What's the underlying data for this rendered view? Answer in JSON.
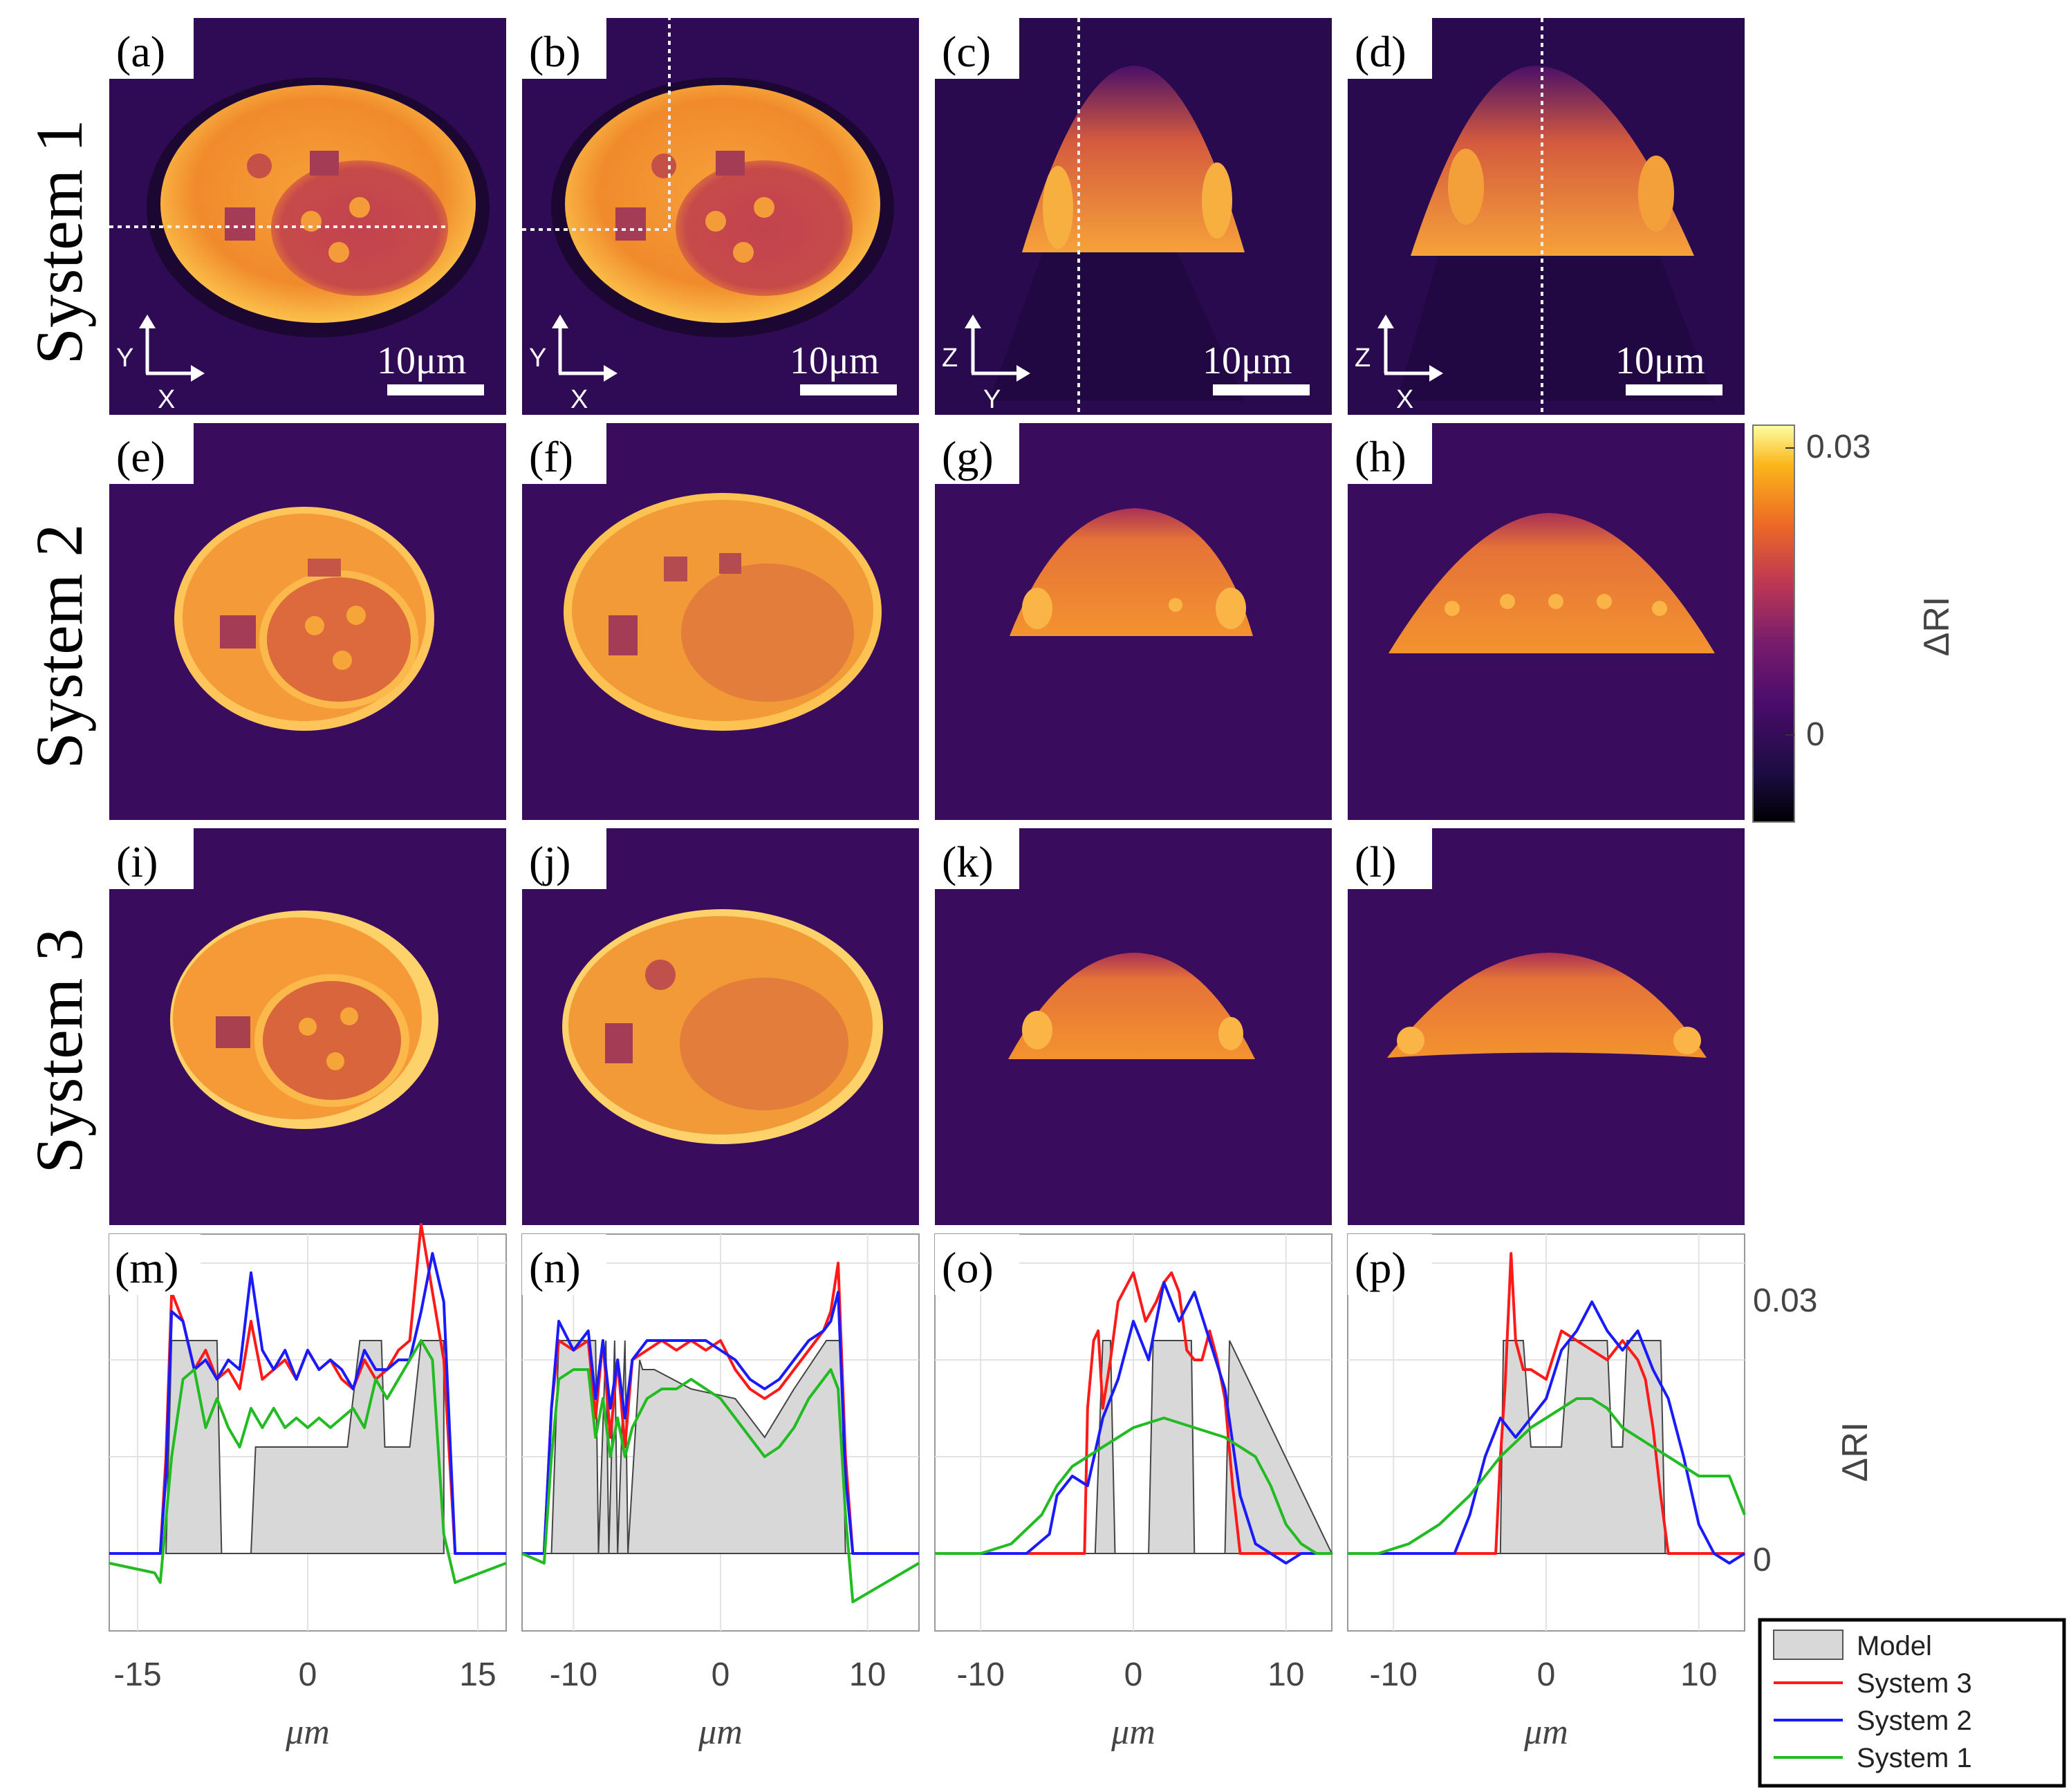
{
  "row_labels": [
    "System 1",
    "System 2",
    "System 3"
  ],
  "panel_labels": [
    "(a)",
    "(b)",
    "(c)",
    "(d)",
    "(e)",
    "(f)",
    "(g)",
    "(h)",
    "(i)",
    "(j)",
    "(k)",
    "(l)",
    "(m)",
    "(n)",
    "(o)",
    "(p)"
  ],
  "scalebar_label": "10μm",
  "axes_icons": [
    {
      "vertical": "Y",
      "horizontal": "X"
    },
    {
      "vertical": "Y",
      "horizontal": "X"
    },
    {
      "vertical": "Z",
      "horizontal": "Y"
    },
    {
      "vertical": "Z",
      "horizontal": "X"
    }
  ],
  "colorbar": {
    "label": "ΔRI",
    "tick_labels": [
      "0.03",
      "0"
    ],
    "range": [
      -0.005,
      0.032
    ],
    "colors": [
      "#000004",
      "#320a5e",
      "#781c6d",
      "#bc3754",
      "#ed6925",
      "#fbb61a",
      "#fcffa4"
    ]
  },
  "colors": {
    "model_fill": "#d8d8d8",
    "model_edge": "#444444",
    "system3": "#ff1a1a",
    "system2": "#1a1aff",
    "system1": "#22bb22",
    "grid": "#e3e3e3"
  },
  "chart_data": [
    {
      "type": "line",
      "title": "(m)",
      "xlabel": "μm",
      "ylabel": "ΔRI",
      "xlim": [
        -17.5,
        17.5
      ],
      "ylim": [
        -0.008,
        0.033
      ],
      "xticks": [
        -15,
        0,
        15
      ],
      "xtick_labels": [
        "-15",
        "0",
        "15"
      ],
      "series": [
        {
          "name": "Model",
          "x": [
            -12.5,
            -12,
            -8,
            -7.6,
            -5,
            -4.6,
            -3.5,
            -3.5,
            3.5,
            3.5,
            4.6,
            6.5,
            6.8,
            9,
            10,
            12
          ],
          "y": [
            0,
            0.022,
            0.022,
            0,
            0,
            0.011,
            0.011,
            0.011,
            0.011,
            0.011,
            0.022,
            0.022,
            0.011,
            0.011,
            0.022,
            0.022
          ]
        },
        {
          "name": "System 3",
          "x": [
            -17.5,
            -13,
            -12.5,
            -12,
            -11,
            -10,
            -9,
            -8,
            -7,
            -6,
            -5,
            -4,
            -3,
            -2,
            -1,
            0,
            1,
            2,
            3,
            4,
            5,
            6,
            7,
            8,
            9,
            10,
            11,
            12,
            13,
            17.5
          ],
          "y": [
            0,
            0,
            0.01,
            0.027,
            0.024,
            0.019,
            0.021,
            0.018,
            0.019,
            0.017,
            0.024,
            0.018,
            0.019,
            0.02,
            0.018,
            0.021,
            0.019,
            0.02,
            0.018,
            0.017,
            0.02,
            0.018,
            0.019,
            0.021,
            0.022,
            0.034,
            0.027,
            0.02,
            0,
            0
          ]
        },
        {
          "name": "System 2",
          "x": [
            -17.5,
            -13,
            -12.5,
            -12,
            -11,
            -10,
            -9,
            -8,
            -7,
            -6,
            -5,
            -4,
            -3,
            -2,
            -1,
            0,
            1,
            2,
            3,
            4,
            5,
            6,
            7,
            8,
            9,
            10,
            11,
            12,
            13,
            17.5
          ],
          "y": [
            0,
            0,
            0.008,
            0.025,
            0.024,
            0.019,
            0.02,
            0.018,
            0.02,
            0.019,
            0.029,
            0.021,
            0.019,
            0.021,
            0.018,
            0.021,
            0.019,
            0.02,
            0.019,
            0.017,
            0.021,
            0.019,
            0.019,
            0.02,
            0.02,
            0.025,
            0.031,
            0.026,
            0,
            0
          ]
        },
        {
          "name": "System 1",
          "x": [
            -17.5,
            -13.5,
            -13,
            -12,
            -11,
            -10,
            -9,
            -8,
            -7,
            -6,
            -5,
            -4,
            -3,
            -2,
            -1,
            0,
            1,
            2,
            3,
            4,
            5,
            6,
            7,
            8,
            9,
            10,
            11,
            12,
            13,
            17.5
          ],
          "y": [
            -0.001,
            -0.002,
            -0.003,
            0.01,
            0.018,
            0.019,
            0.013,
            0.016,
            0.013,
            0.011,
            0.015,
            0.013,
            0.015,
            0.013,
            0.014,
            0.013,
            0.014,
            0.013,
            0.014,
            0.015,
            0.013,
            0.018,
            0.016,
            0.018,
            0.02,
            0.022,
            0.02,
            0.002,
            -0.003,
            -0.001
          ]
        }
      ]
    },
    {
      "type": "line",
      "title": "(n)",
      "xlabel": "μm",
      "ylabel": "ΔRI",
      "xlim": [
        -13.5,
        13.5
      ],
      "ylim": [
        -0.008,
        0.033
      ],
      "xticks": [
        -10,
        0,
        10
      ],
      "xtick_labels": [
        "-10",
        "0",
        "10"
      ],
      "series": [
        {
          "name": "Model",
          "x": [
            -13,
            -11.5,
            -11,
            -9,
            -8.5,
            -8.3,
            -7.8,
            -7.6,
            -7.2,
            -7,
            -6.5,
            -6.3,
            -5.5,
            -5.3,
            -4.5,
            -2,
            1,
            3,
            5,
            7.2,
            7.8,
            8.2,
            8.5,
            13.5
          ],
          "y": [
            0,
            0,
            0.022,
            0.022,
            0.022,
            0,
            0.022,
            0,
            0.022,
            0,
            0.022,
            0,
            0.02,
            0.019,
            0.019,
            0.017,
            0.016,
            0.012,
            0.017,
            0.022,
            0.022,
            0.022,
            0,
            0
          ]
        },
        {
          "name": "System 3",
          "x": [
            -13.5,
            -12,
            -11.5,
            -11,
            -10,
            -9,
            -8.5,
            -8,
            -7.5,
            -7,
            -6.5,
            -6,
            -5,
            -4,
            -3,
            -2,
            -1,
            0,
            1,
            2,
            3,
            4,
            5,
            6,
            7,
            7.5,
            8,
            8.5,
            9,
            13.5
          ],
          "y": [
            0,
            0,
            0.015,
            0.022,
            0.021,
            0.022,
            0.014,
            0.022,
            0.012,
            0.02,
            0.011,
            0.02,
            0.021,
            0.022,
            0.021,
            0.022,
            0.021,
            0.022,
            0.019,
            0.017,
            0.016,
            0.017,
            0.019,
            0.021,
            0.023,
            0.025,
            0.03,
            0.01,
            0,
            0
          ]
        },
        {
          "name": "System 2",
          "x": [
            -13.5,
            -12,
            -11.5,
            -11,
            -10,
            -9,
            -8.5,
            -8,
            -7.5,
            -7,
            -6.5,
            -6,
            -5,
            -4,
            -3,
            -2,
            -1,
            0,
            1,
            2,
            3,
            4,
            5,
            6,
            7,
            7.5,
            8,
            8.5,
            9,
            13.5
          ],
          "y": [
            0,
            0,
            0.015,
            0.024,
            0.021,
            0.023,
            0.016,
            0.022,
            0.015,
            0.02,
            0.014,
            0.02,
            0.022,
            0.022,
            0.022,
            0.022,
            0.022,
            0.021,
            0.02,
            0.018,
            0.017,
            0.018,
            0.02,
            0.022,
            0.023,
            0.024,
            0.027,
            0.008,
            0,
            0
          ]
        },
        {
          "name": "System 1",
          "x": [
            -13.5,
            -12,
            -11.5,
            -11,
            -10,
            -9,
            -8.5,
            -8,
            -7.5,
            -7,
            -6.5,
            -6,
            -5,
            -4,
            -3,
            -2,
            -1,
            0,
            1,
            2,
            3,
            4,
            5,
            6,
            7,
            7.5,
            8,
            8.5,
            9,
            13.5
          ],
          "y": [
            0,
            -0.001,
            0.01,
            0.018,
            0.019,
            0.019,
            0.012,
            0.016,
            0.01,
            0.014,
            0.01,
            0.013,
            0.016,
            0.017,
            0.017,
            0.018,
            0.017,
            0.016,
            0.014,
            0.012,
            0.01,
            0.011,
            0.013,
            0.016,
            0.018,
            0.019,
            0.017,
            0.004,
            -0.005,
            -0.001
          ]
        }
      ]
    },
    {
      "type": "line",
      "title": "(o)",
      "xlabel": "μm",
      "ylabel": "ΔRI",
      "xlim": [
        -13,
        13
      ],
      "ylim": [
        -0.008,
        0.033
      ],
      "xticks": [
        -10,
        0,
        10
      ],
      "xtick_labels": [
        "-10",
        "0",
        "10"
      ],
      "series": [
        {
          "name": "Model",
          "x": [
            -13,
            -2.5,
            -2,
            -1.5,
            -1.2,
            1,
            1.3,
            3.8,
            4,
            6,
            6.3,
            13
          ],
          "y": [
            0,
            0,
            0.022,
            0.022,
            0,
            0,
            0.022,
            0.022,
            0,
            0,
            0.022,
            0
          ]
        },
        {
          "name": "System 3",
          "x": [
            -13,
            -3.2,
            -3,
            -2.6,
            -2.3,
            -2,
            -1.5,
            -1,
            0,
            0.8,
            1.5,
            2,
            2.5,
            3,
            3.5,
            4,
            4.5,
            5,
            5.5,
            6,
            6.5,
            7,
            13
          ],
          "y": [
            0,
            0,
            0.015,
            0.022,
            0.023,
            0.015,
            0.02,
            0.026,
            0.029,
            0.024,
            0.026,
            0.028,
            0.029,
            0.027,
            0.021,
            0.02,
            0.02,
            0.023,
            0.02,
            0.016,
            0.007,
            0,
            0
          ]
        },
        {
          "name": "System 2",
          "x": [
            -13,
            -7,
            -5.5,
            -5,
            -4,
            -3,
            -2,
            -1,
            0,
            1,
            2,
            3,
            4,
            5,
            6,
            7,
            8,
            9,
            10,
            11,
            12,
            13
          ],
          "y": [
            0,
            0,
            0.002,
            0.006,
            0.008,
            0.007,
            0.014,
            0.018,
            0.024,
            0.02,
            0.028,
            0.024,
            0.027,
            0.022,
            0.017,
            0.006,
            0.001,
            0,
            -0.001,
            0,
            0,
            0
          ]
        },
        {
          "name": "System 1",
          "x": [
            -13,
            -10,
            -8,
            -6,
            -5,
            -4,
            -2,
            0,
            2,
            4,
            6,
            8,
            9,
            10,
            11,
            12,
            13
          ],
          "y": [
            0,
            0,
            0.001,
            0.004,
            0.007,
            0.009,
            0.011,
            0.013,
            0.014,
            0.013,
            0.012,
            0.01,
            0.007,
            0.003,
            0.001,
            0,
            0
          ]
        }
      ]
    },
    {
      "type": "line",
      "title": "(p)",
      "xlabel": "μm",
      "ylabel": "ΔRI",
      "xlim": [
        -13,
        13
      ],
      "ylim": [
        -0.008,
        0.033
      ],
      "xticks": [
        -10,
        0,
        10
      ],
      "xtick_labels": [
        "-10",
        "0",
        "10"
      ],
      "series": [
        {
          "name": "Model",
          "x": [
            -13,
            -3,
            -2.8,
            -1.5,
            -1,
            1,
            1.5,
            4,
            4.3,
            5,
            5.3,
            7.5,
            7.8,
            13
          ],
          "y": [
            0,
            0,
            0.022,
            0.022,
            0.011,
            0.011,
            0.022,
            0.022,
            0.011,
            0.011,
            0.022,
            0.022,
            0,
            0
          ]
        },
        {
          "name": "System 3",
          "x": [
            -13,
            -3.3,
            -3,
            -2.7,
            -2.3,
            -2,
            -1.5,
            -1,
            0,
            1,
            2,
            3,
            4,
            5,
            6,
            6.5,
            7,
            7.5,
            8,
            8.5,
            13
          ],
          "y": [
            0,
            0,
            0.01,
            0.017,
            0.031,
            0.022,
            0.019,
            0.019,
            0.018,
            0.023,
            0.022,
            0.021,
            0.02,
            0.022,
            0.02,
            0.018,
            0.013,
            0.006,
            0,
            0,
            0
          ]
        },
        {
          "name": "System 2",
          "x": [
            -13,
            -6,
            -5,
            -4,
            -3,
            -2,
            -1,
            0,
            1,
            2,
            3,
            4,
            5,
            6,
            7,
            8,
            9,
            10,
            11,
            12,
            13
          ],
          "y": [
            0,
            0,
            0.004,
            0.01,
            0.014,
            0.012,
            0.014,
            0.016,
            0.021,
            0.023,
            0.026,
            0.023,
            0.021,
            0.023,
            0.019,
            0.016,
            0.01,
            0.003,
            0,
            -0.001,
            0
          ]
        },
        {
          "name": "System 1",
          "x": [
            -13,
            -11,
            -9,
            -7,
            -5,
            -3,
            -1,
            1,
            2,
            3,
            4,
            5,
            6,
            7,
            8,
            9,
            10,
            11,
            12,
            13
          ],
          "y": [
            0,
            0,
            0.001,
            0.003,
            0.006,
            0.01,
            0.013,
            0.015,
            0.016,
            0.016,
            0.015,
            0.013,
            0.012,
            0.011,
            0.01,
            0.009,
            0.008,
            0.008,
            0.008,
            0.004
          ]
        }
      ]
    }
  ],
  "legend": [
    "Model",
    "System 3",
    "System 2",
    "System 1"
  ]
}
